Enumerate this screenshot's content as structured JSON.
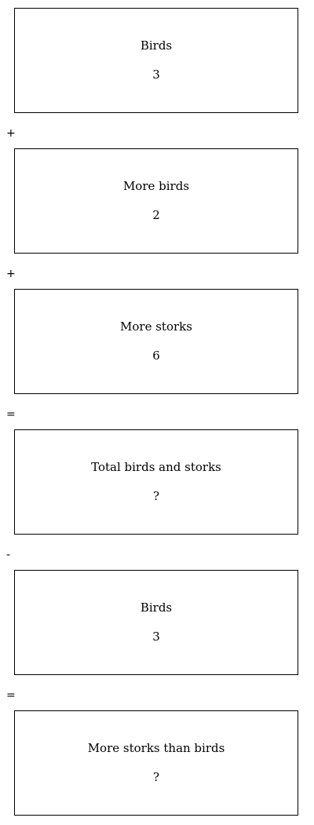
{
  "steps": [
    {
      "label": "Birds",
      "value": "3"
    },
    {
      "label": "More birds",
      "value": "2"
    },
    {
      "label": "More storks",
      "value": "6"
    },
    {
      "label": "Total birds and storks",
      "value": "?"
    },
    {
      "label": "Birds",
      "value": "3"
    },
    {
      "label": "More storks than birds",
      "value": "?"
    }
  ],
  "operators": [
    "+",
    "+",
    "=",
    "-",
    "="
  ]
}
